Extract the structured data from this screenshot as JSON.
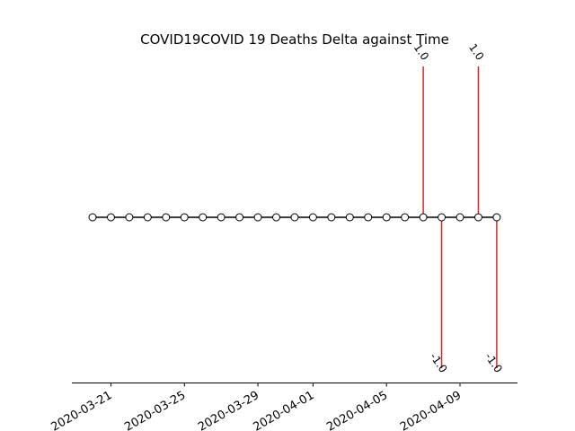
{
  "chart_data": {
    "type": "line",
    "title": "COVID19COVID 19 Deaths Delta against Time",
    "xlabel": "",
    "ylabel": "",
    "x_tick_labels": [
      "2020-03-21",
      "2020-03-25",
      "2020-03-29",
      "2020-04-01",
      "2020-04-05",
      "2020-04-09"
    ],
    "dates": [
      "2020-03-20",
      "2020-03-21",
      "2020-03-22",
      "2020-03-23",
      "2020-03-24",
      "2020-03-25",
      "2020-03-26",
      "2020-03-27",
      "2020-03-28",
      "2020-03-29",
      "2020-03-30",
      "2020-03-31",
      "2020-04-01",
      "2020-04-02",
      "2020-04-03",
      "2020-04-04",
      "2020-04-05",
      "2020-04-06",
      "2020-04-07",
      "2020-04-08",
      "2020-04-09",
      "2020-04-10",
      "2020-04-11"
    ],
    "values": [
      0,
      0,
      0,
      0,
      0,
      0,
      0,
      0,
      0,
      0,
      0,
      0,
      0,
      0,
      0,
      0,
      0,
      0,
      0,
      0,
      0,
      0,
      0
    ],
    "stems": [
      {
        "date": "2020-04-07",
        "value": 1.0,
        "label": "1.0"
      },
      {
        "date": "2020-04-08",
        "value": -1.0,
        "label": "-1.0"
      },
      {
        "date": "2020-04-10",
        "value": 1.0,
        "label": "1.0"
      },
      {
        "date": "2020-04-11",
        "value": -1.0,
        "label": "-1.0"
      }
    ],
    "ylim": [
      -1.1,
      1.1
    ],
    "grid": false,
    "colors": {
      "line": "#000000",
      "marker_fill": "#ffffff",
      "stem": "#d62728"
    }
  }
}
